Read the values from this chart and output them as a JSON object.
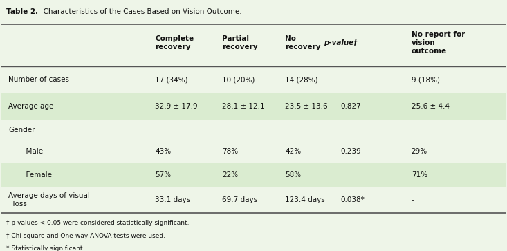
{
  "title_bold": "Table 2.",
  "title_rest": "  Characteristics of the Cases Based on Vision Outcome.",
  "bg_color": "#eef5e8",
  "header_bg": "#daecd0",
  "col_headers": [
    "",
    "Complete\nrecovery",
    "Partial\nrecovery",
    "No\nrecovery",
    "p-value†",
    "No report for\nvision\noutcome"
  ],
  "rows": [
    {
      "label": "Number of cases",
      "indent": false,
      "values": [
        "17 (34%)",
        "10 (20%)",
        "14 (28%)",
        "-",
        "9 (18%)"
      ],
      "shade": false
    },
    {
      "label": "Average age",
      "indent": false,
      "values": [
        "32.9 ± 17.9",
        "28.1 ± 12.1",
        "23.5 ± 13.6",
        "0.827",
        "25.6 ± 4.4"
      ],
      "shade": true
    },
    {
      "label": "Gender",
      "indent": false,
      "values": [
        "",
        "",
        "",
        "",
        ""
      ],
      "shade": false,
      "header_row": true
    },
    {
      "label": "  Male",
      "indent": true,
      "values": [
        "43%",
        "78%",
        "42%",
        "0.239",
        "29%"
      ],
      "shade": false
    },
    {
      "label": "  Female",
      "indent": true,
      "values": [
        "57%",
        "22%",
        "58%",
        "",
        "71%"
      ],
      "shade": true
    },
    {
      "label": "Average days of visual\n  loss",
      "indent": false,
      "values": [
        "33.1 days",
        "69.7 days",
        "123.4 days",
        "0.038*",
        "-"
      ],
      "shade": false
    }
  ],
  "footnotes": [
    "† p-values < 0.05 were considered statistically significant.",
    "† Chi square and One-way ANOVA tests were used.",
    "* Statistically significant."
  ],
  "row_shade_color": "#daecd0",
  "white_color": "#eef5e8",
  "text_color": "#111111",
  "border_color": "#555555"
}
